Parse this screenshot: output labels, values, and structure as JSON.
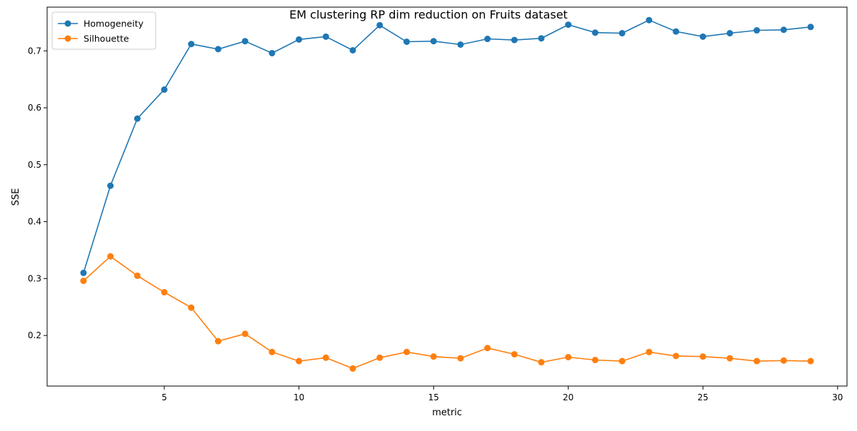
{
  "chart_data": {
    "type": "line",
    "title": "EM clustering RP dim reduction on Fruits dataset",
    "xlabel": "metric",
    "ylabel": "SSE",
    "xlim": [
      0.65,
      30.35
    ],
    "ylim": [
      0.1112,
      0.7768
    ],
    "xticks": [
      5,
      10,
      15,
      20,
      25,
      30
    ],
    "yticks": [
      0.2,
      0.3,
      0.4,
      0.5,
      0.6,
      0.7
    ],
    "grid": false,
    "legend_position": "top-left",
    "x": [
      2,
      3,
      4,
      5,
      6,
      7,
      8,
      9,
      10,
      11,
      12,
      13,
      14,
      15,
      16,
      17,
      18,
      19,
      20,
      21,
      22,
      23,
      24,
      25,
      26,
      27,
      28,
      29
    ],
    "series": [
      {
        "name": "Homogeneity",
        "color": "#1f77b4",
        "values": [
          0.31,
          0.463,
          0.581,
          0.632,
          0.712,
          0.703,
          0.717,
          0.696,
          0.72,
          0.725,
          0.701,
          0.745,
          0.716,
          0.717,
          0.711,
          0.721,
          0.719,
          0.722,
          0.746,
          0.732,
          0.731,
          0.754,
          0.734,
          0.725,
          0.731,
          0.736,
          0.737,
          0.742
        ]
      },
      {
        "name": "Silhouette",
        "color": "#ff7f0e",
        "values": [
          0.296,
          0.339,
          0.305,
          0.276,
          0.249,
          0.19,
          0.203,
          0.171,
          0.155,
          0.161,
          0.142,
          0.161,
          0.171,
          0.163,
          0.16,
          0.178,
          0.167,
          0.153,
          0.162,
          0.157,
          0.155,
          0.171,
          0.164,
          0.163,
          0.16,
          0.155,
          0.156,
          0.155
        ]
      }
    ]
  }
}
